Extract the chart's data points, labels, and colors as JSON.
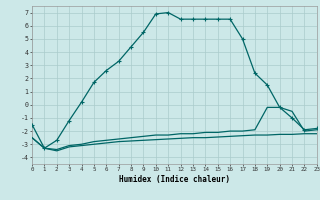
{
  "xlabel": "Humidex (Indice chaleur)",
  "background_color": "#cce8e8",
  "grid_color": "#aacccc",
  "line_color": "#006666",
  "x_min": 0,
  "x_max": 23,
  "y_min": -4.5,
  "y_max": 7.5,
  "yticks": [
    -4,
    -3,
    -2,
    -1,
    0,
    1,
    2,
    3,
    4,
    5,
    6,
    7
  ],
  "xticks": [
    0,
    1,
    2,
    3,
    4,
    5,
    6,
    7,
    8,
    9,
    10,
    11,
    12,
    13,
    14,
    15,
    16,
    17,
    18,
    19,
    20,
    21,
    22,
    23
  ],
  "curve1_x": [
    0,
    1,
    2,
    3,
    4,
    5,
    6,
    7,
    8,
    9,
    10,
    11,
    12,
    13,
    14,
    15,
    16,
    17,
    18,
    19,
    20,
    21,
    22,
    23
  ],
  "curve1_y": [
    -1.5,
    -3.3,
    -2.7,
    -1.2,
    0.2,
    1.7,
    2.6,
    3.3,
    4.4,
    5.5,
    6.9,
    7.0,
    6.5,
    6.5,
    6.5,
    6.5,
    6.5,
    5.0,
    2.4,
    1.5,
    -0.2,
    -1.0,
    -1.9,
    -1.8
  ],
  "curve2_x": [
    0,
    1,
    2,
    3,
    4,
    5,
    6,
    7,
    8,
    9,
    10,
    11,
    12,
    13,
    14,
    15,
    16,
    17,
    18,
    19,
    20,
    21,
    22,
    23
  ],
  "curve2_y": [
    -2.5,
    -3.3,
    -3.4,
    -3.1,
    -3.0,
    -2.8,
    -2.7,
    -2.6,
    -2.5,
    -2.4,
    -2.3,
    -2.3,
    -2.2,
    -2.2,
    -2.1,
    -2.1,
    -2.0,
    -2.0,
    -1.9,
    -0.2,
    -0.2,
    -0.5,
    -2.0,
    -1.9
  ],
  "curve3_x": [
    0,
    1,
    2,
    3,
    4,
    5,
    6,
    7,
    8,
    9,
    10,
    11,
    12,
    13,
    14,
    15,
    16,
    17,
    18,
    19,
    20,
    21,
    22,
    23
  ],
  "curve3_y": [
    -2.5,
    -3.3,
    -3.5,
    -3.2,
    -3.1,
    -3.0,
    -2.9,
    -2.8,
    -2.75,
    -2.7,
    -2.65,
    -2.6,
    -2.55,
    -2.5,
    -2.5,
    -2.45,
    -2.4,
    -2.35,
    -2.3,
    -2.3,
    -2.25,
    -2.25,
    -2.2,
    -2.2
  ]
}
